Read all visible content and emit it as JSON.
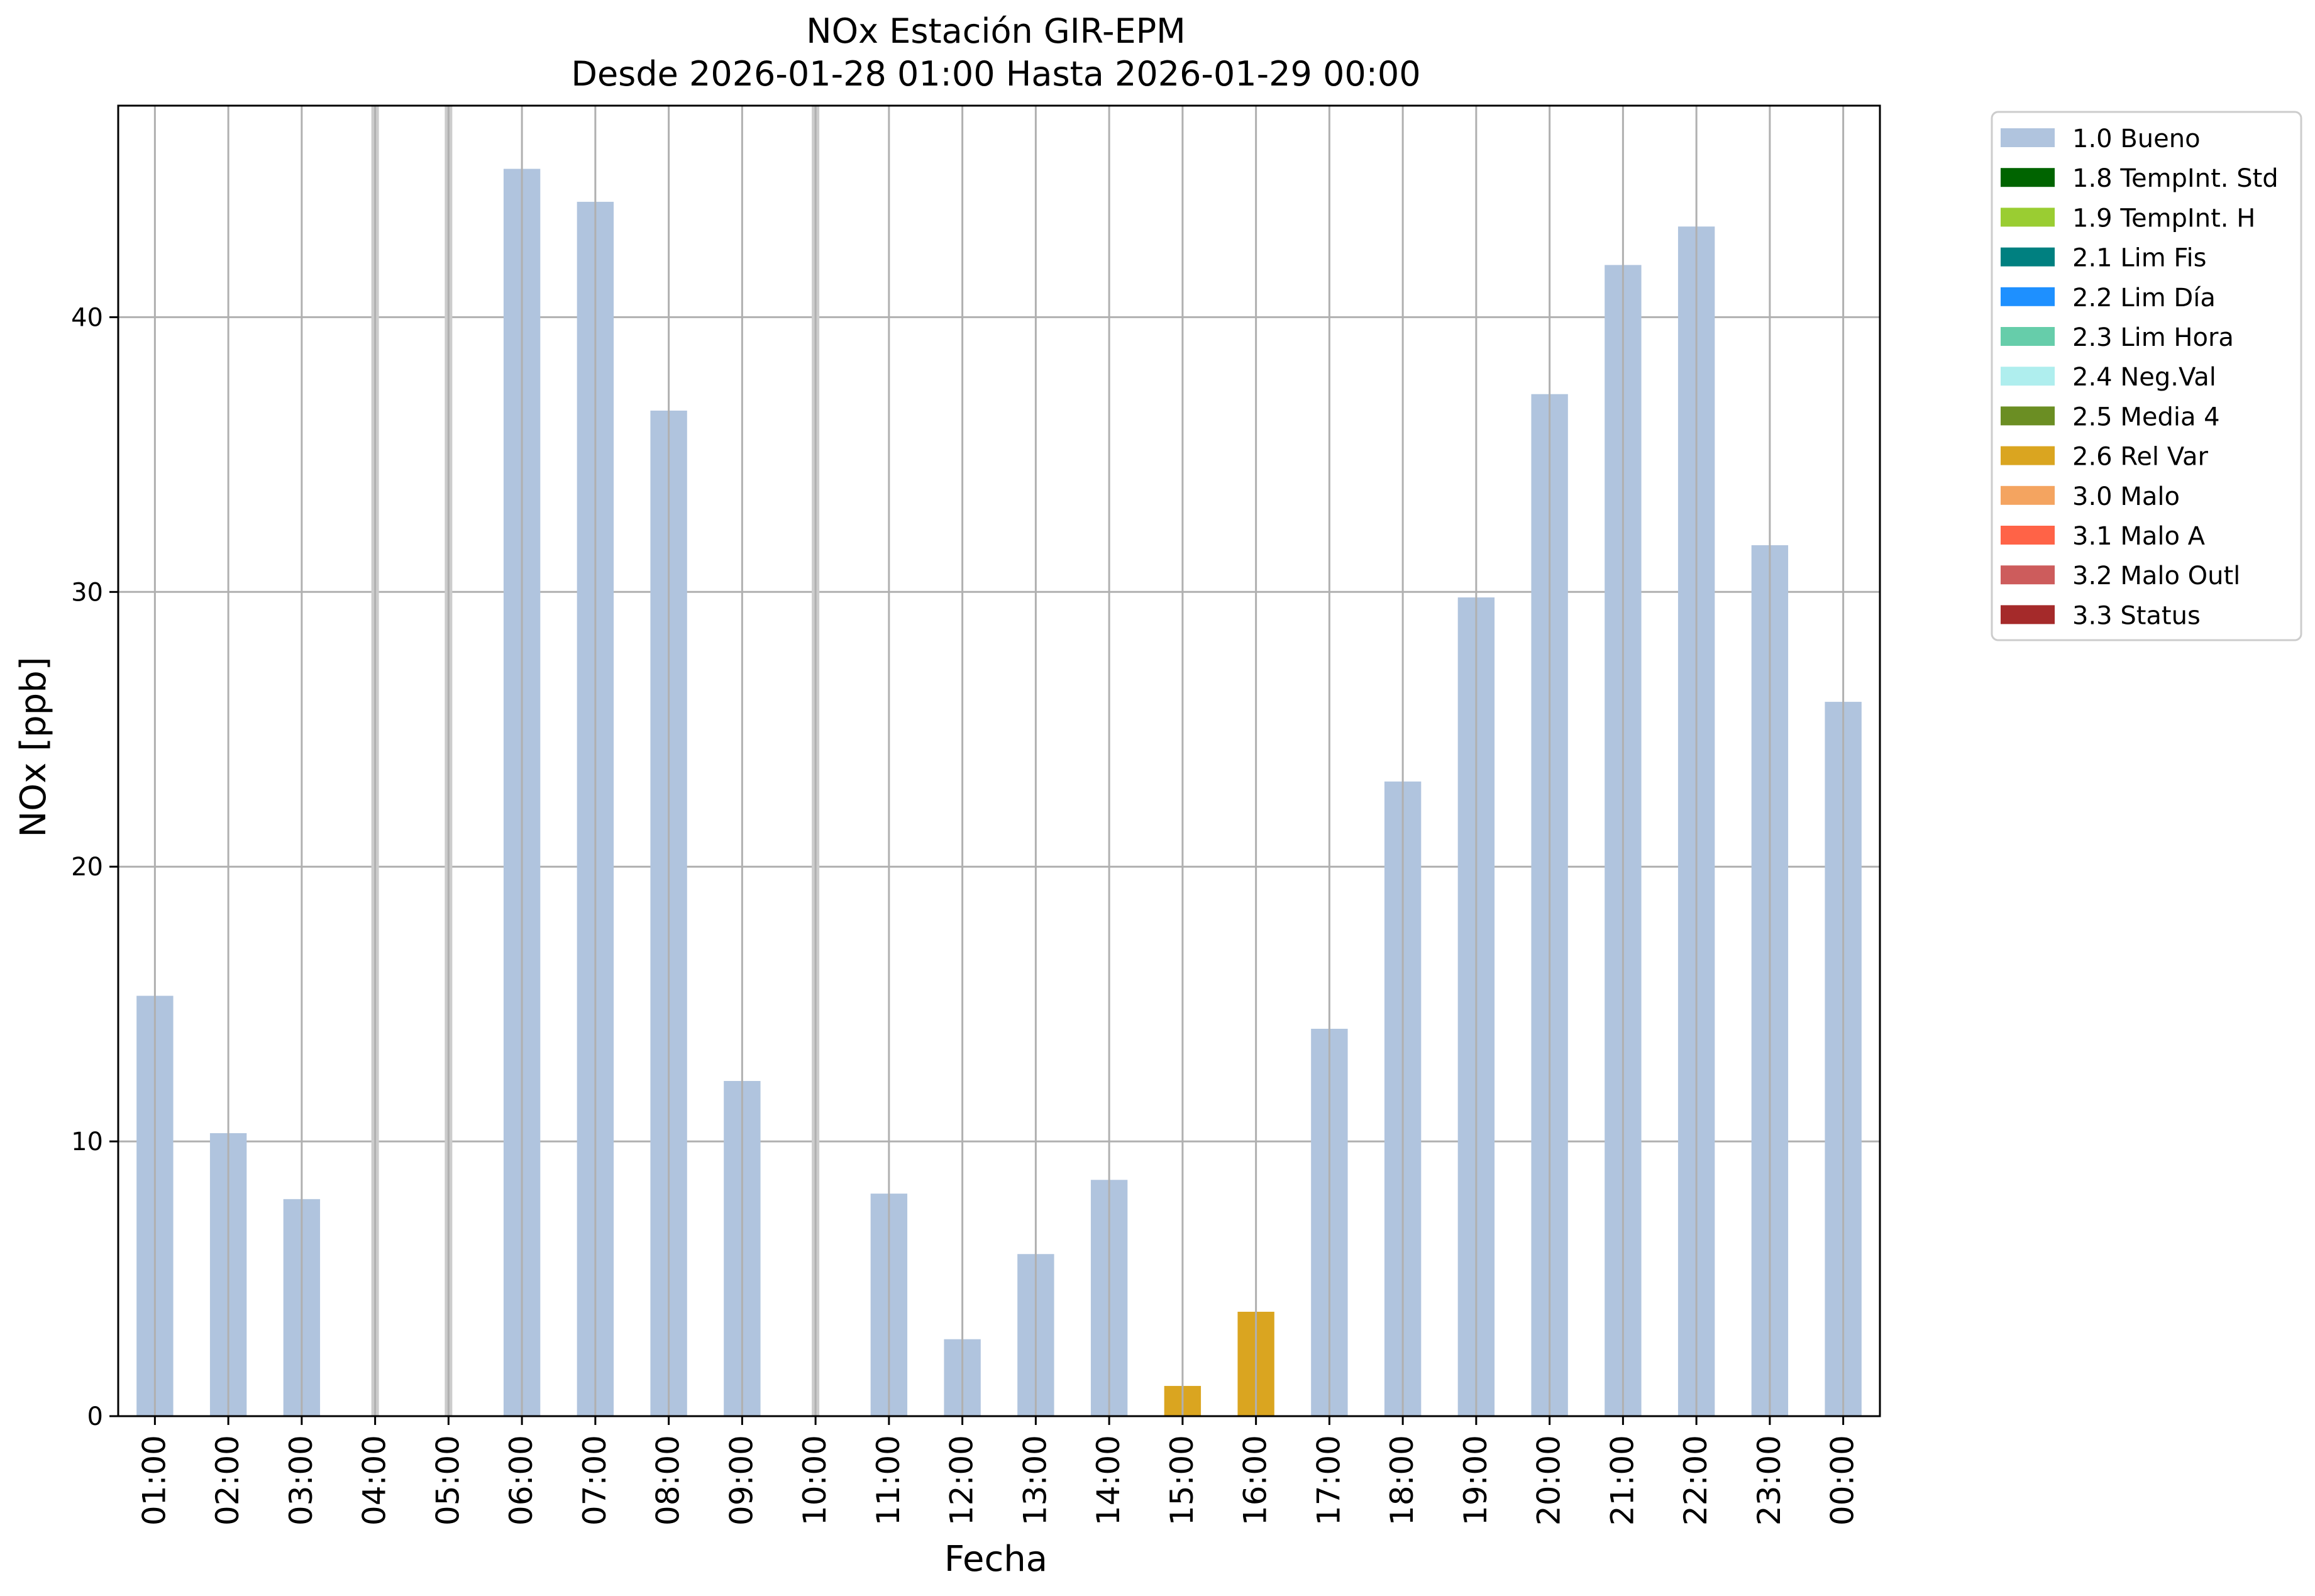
{
  "chart_data": {
    "type": "bar",
    "title": "NOx Estación GIR-EPM",
    "subtitle": "Desde 2026-01-28 01:00 Hasta 2026-01-29 00:00",
    "xlabel": "Fecha",
    "ylabel": "NOx [ppb]",
    "ylim": [
      0,
      47.7
    ],
    "yticks": [
      "0",
      "10",
      "20",
      "30",
      "40"
    ],
    "grid": true,
    "legend_position": "outside top-right",
    "categories": [
      "01:00",
      "02:00",
      "03:00",
      "04:00",
      "05:00",
      "06:00",
      "07:00",
      "08:00",
      "09:00",
      "10:00",
      "11:00",
      "12:00",
      "13:00",
      "14:00",
      "15:00",
      "16:00",
      "17:00",
      "18:00",
      "19:00",
      "20:00",
      "21:00",
      "22:00",
      "23:00",
      "00:00"
    ],
    "values": [
      15.3,
      10.3,
      7.9,
      null,
      null,
      45.4,
      44.2,
      36.6,
      12.2,
      null,
      8.1,
      2.8,
      5.9,
      8.6,
      1.1,
      3.8,
      14.1,
      23.1,
      29.8,
      37.2,
      41.9,
      43.3,
      31.7,
      26.0
    ],
    "flags": [
      "1.0 Bueno",
      "1.0 Bueno",
      "1.0 Bueno",
      null,
      null,
      "1.0 Bueno",
      "1.0 Bueno",
      "1.0 Bueno",
      "1.0 Bueno",
      null,
      "1.0 Bueno",
      "1.0 Bueno",
      "1.0 Bueno",
      "1.0 Bueno",
      "2.6 Rel Var",
      "2.6 Rel Var",
      "1.0 Bueno",
      "1.0 Bueno",
      "1.0 Bueno",
      "1.0 Bueno",
      "1.0 Bueno",
      "1.0 Bueno",
      "1.0 Bueno",
      "1.0 Bueno"
    ],
    "missing_markers": [
      "04:00",
      "05:00",
      "10:00"
    ],
    "legend": [
      {
        "label": "1.0 Bueno",
        "color": "#b0c4de"
      },
      {
        "label": "1.8 TempInt. Std",
        "color": "#006400"
      },
      {
        "label": "1.9 TempInt. H",
        "color": "#9acd32"
      },
      {
        "label": "2.1 Lim Fis",
        "color": "#008080"
      },
      {
        "label": "2.2 Lim Día",
        "color": "#1e90ff"
      },
      {
        "label": "2.3 Lim Hora",
        "color": "#66cdaa"
      },
      {
        "label": "2.4 Neg.Val",
        "color": "#afeeee"
      },
      {
        "label": "2.5 Media 4",
        "color": "#6b8e23"
      },
      {
        "label": "2.6 Rel Var",
        "color": "#daa520"
      },
      {
        "label": "3.0 Malo",
        "color": "#f4a460"
      },
      {
        "label": "3.1 Malo A",
        "color": "#ff6347"
      },
      {
        "label": "3.2 Malo Outl",
        "color": "#cd5c5c"
      },
      {
        "label": "3.3 Status",
        "color": "#a52a2a"
      }
    ],
    "colors": {
      "grid": "#b0b0b0",
      "missing_marker": "#cccccc",
      "axis": "#000000"
    }
  }
}
